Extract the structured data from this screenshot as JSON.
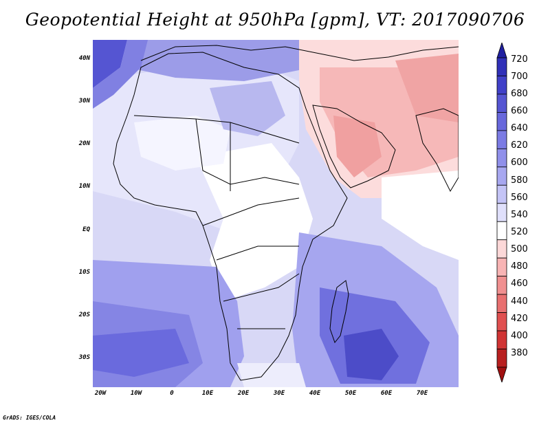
{
  "title": "Geopotential Height at 950hPa [gpm], VT: 2017090706",
  "credit": "GrADS: IGES/COLA",
  "map": {
    "variable": "Geopotential Height",
    "level": "950hPa",
    "units": "gpm",
    "valid_time": "2017090706",
    "lon_range": [
      -22,
      80
    ],
    "lat_range": [
      -37,
      45
    ],
    "lat_ticks": [
      "40N",
      "30N",
      "20N",
      "10N",
      "EQ",
      "10S",
      "20S",
      "30S"
    ],
    "lon_ticks": [
      "20W",
      "10W",
      "0",
      "10E",
      "20E",
      "30E",
      "40E",
      "50E",
      "60E",
      "70E"
    ],
    "background_color": "#d6d6f5"
  },
  "colorbar": {
    "labels": [
      "720",
      "700",
      "680",
      "660",
      "640",
      "620",
      "600",
      "580",
      "560",
      "540",
      "520",
      "500",
      "480",
      "460",
      "440",
      "420",
      "400",
      "380"
    ],
    "colors": [
      "#2020a0",
      "#3030b8",
      "#4040c8",
      "#5555d2",
      "#6868dc",
      "#7b7be4",
      "#9090ea",
      "#a8a8f0",
      "#c4c4f6",
      "#e0e0fb",
      "#ffffff",
      "#fcd8d8",
      "#f8b4b4",
      "#f09090",
      "#e87070",
      "#e05050",
      "#d03434",
      "#b82020",
      "#a01010"
    ]
  }
}
